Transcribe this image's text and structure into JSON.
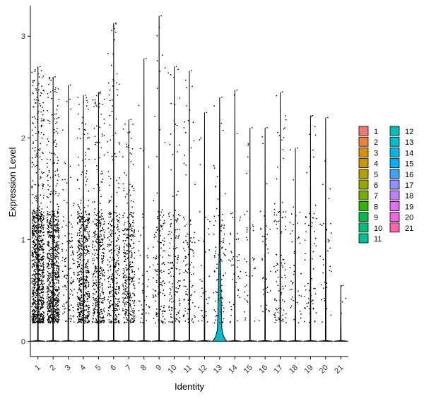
{
  "chart_data": {
    "type": "violin",
    "xlabel": "Identity",
    "ylabel": "Expression Level",
    "ylim": [
      -0.15,
      3.3
    ],
    "yticks": [
      0,
      1,
      2,
      3
    ],
    "categories": [
      "1",
      "2",
      "3",
      "4",
      "5",
      "6",
      "7",
      "8",
      "9",
      "10",
      "11",
      "12",
      "13",
      "14",
      "15",
      "16",
      "17",
      "18",
      "19",
      "20",
      "21"
    ],
    "series": [
      {
        "name": "1",
        "color": "#F8766D",
        "max": 2.7,
        "points": 900
      },
      {
        "name": "2",
        "color": "#EC823C",
        "max": 2.6,
        "points": 750
      },
      {
        "name": "3",
        "color": "#DD8D00",
        "max": 2.52,
        "points": 120
      },
      {
        "name": "4",
        "color": "#CA9700",
        "max": 2.42,
        "points": 520
      },
      {
        "name": "5",
        "color": "#B3A000",
        "max": 2.45,
        "points": 380
      },
      {
        "name": "6",
        "color": "#97A900",
        "max": 3.13,
        "points": 320
      },
      {
        "name": "7",
        "color": "#71B000",
        "max": 2.18,
        "points": 330
      },
      {
        "name": "8",
        "color": "#2FB600",
        "max": 2.78,
        "points": 45
      },
      {
        "name": "9",
        "color": "#00BB4B",
        "max": 3.2,
        "points": 140
      },
      {
        "name": "10",
        "color": "#00BF76",
        "max": 2.7,
        "points": 150
      },
      {
        "name": "11",
        "color": "#00C098",
        "max": 2.66,
        "points": 110
      },
      {
        "name": "12",
        "color": "#00C0B7",
        "max": 2.25,
        "points": 35
      },
      {
        "name": "13",
        "color": "#00BDD1",
        "max": 2.4,
        "points": 90
      },
      {
        "name": "14",
        "color": "#00B7E8",
        "max": 2.47,
        "points": 45
      },
      {
        "name": "15",
        "color": "#00AEFA",
        "max": 2.1,
        "points": 40
      },
      {
        "name": "16",
        "color": "#3DA1FF",
        "max": 2.1,
        "points": 40
      },
      {
        "name": "17",
        "color": "#8F91FF",
        "max": 2.45,
        "points": 100
      },
      {
        "name": "18",
        "color": "#BE80FF",
        "max": 1.9,
        "points": 45
      },
      {
        "name": "19",
        "color": "#E26EF7",
        "max": 2.22,
        "points": 60
      },
      {
        "name": "20",
        "color": "#F464E2",
        "max": 2.2,
        "points": 35
      },
      {
        "name": "21",
        "color": "#FF64B0",
        "max": 0.55,
        "points": 4
      }
    ],
    "legend": {
      "position": "right",
      "columns": 2
    },
    "grid": false
  }
}
